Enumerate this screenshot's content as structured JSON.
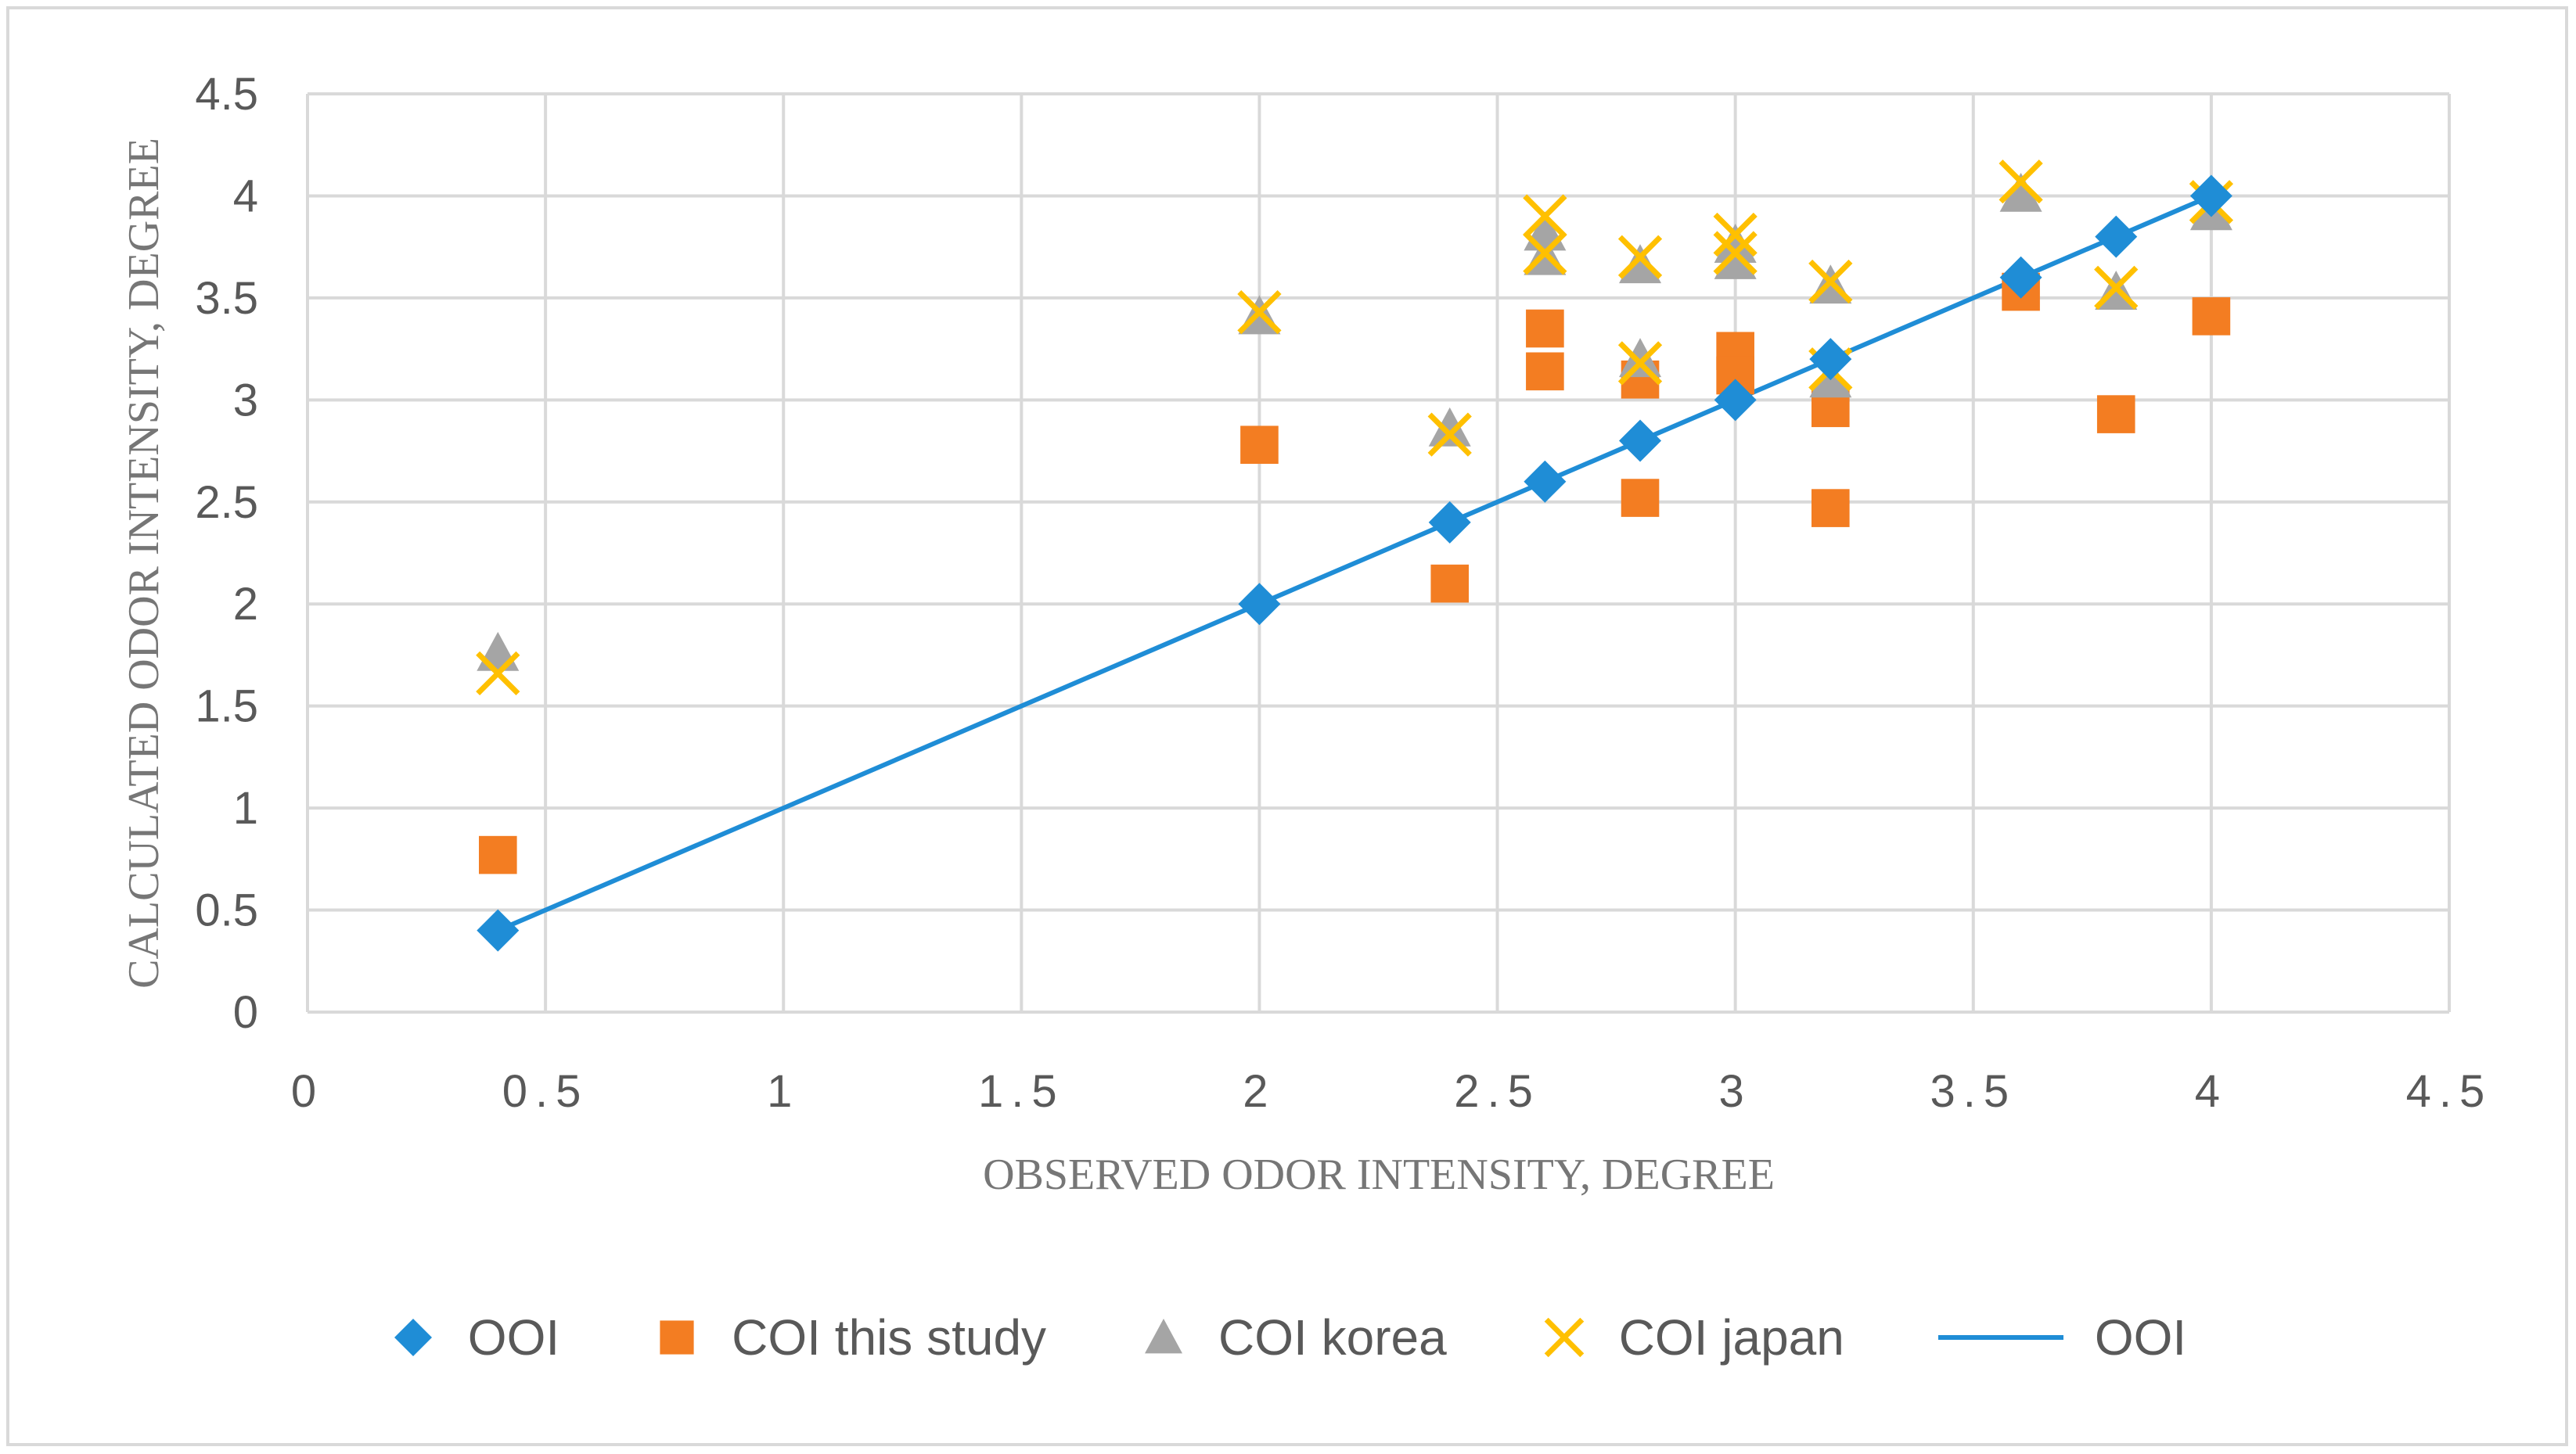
{
  "chart_data": {
    "type": "scatter",
    "title": "",
    "xlabel": "OBSERVED ODOR INTENSITY,  DEGREE",
    "ylabel": "CALCULATED ODOR  INTENSITY, DEGREE",
    "xlim": [
      0,
      4.5
    ],
    "ylim": [
      0,
      4.5
    ],
    "x_ticks": [
      "0",
      "0.5",
      "1",
      "1.5",
      "2",
      "2.5",
      "3",
      "3.5",
      "4",
      "4.5"
    ],
    "y_ticks": [
      "0",
      "0.5",
      "1",
      "1.5",
      "2",
      "2.5",
      "3",
      "3.5",
      "4",
      "4.5"
    ],
    "grid": true,
    "legend_position": "bottom",
    "series": [
      {
        "name": "OOI",
        "marker": "diamond",
        "color": "#1f8dd6",
        "points": [
          [
            0.4,
            0.4
          ],
          [
            2,
            2
          ],
          [
            2.4,
            2.4
          ],
          [
            2.6,
            2.6
          ],
          [
            2.8,
            2.8
          ],
          [
            3,
            3
          ],
          [
            3.2,
            3.2
          ],
          [
            3.6,
            3.6
          ],
          [
            3.8,
            3.8
          ],
          [
            4,
            4
          ]
        ]
      },
      {
        "name": "COI this study",
        "marker": "square",
        "color": "#f37d22",
        "points": [
          [
            0.4,
            0.77
          ],
          [
            2,
            2.78
          ],
          [
            2.4,
            2.1
          ],
          [
            2.6,
            3.35
          ],
          [
            2.6,
            3.14
          ],
          [
            2.8,
            3.1
          ],
          [
            2.8,
            2.52
          ],
          [
            3,
            3.24
          ],
          [
            3,
            3.12
          ],
          [
            3.2,
            2.96
          ],
          [
            3.2,
            2.47
          ],
          [
            3.6,
            3.53
          ],
          [
            3.8,
            2.93
          ],
          [
            4,
            3.41
          ]
        ]
      },
      {
        "name": "COI korea",
        "marker": "triangle",
        "color": "#a5a5a5",
        "points": [
          [
            0.4,
            1.76
          ],
          [
            2,
            3.41
          ],
          [
            2.4,
            2.86
          ],
          [
            2.6,
            3.82
          ],
          [
            2.6,
            3.7
          ],
          [
            2.8,
            3.66
          ],
          [
            2.8,
            3.2
          ],
          [
            3,
            3.76
          ],
          [
            3,
            3.68
          ],
          [
            3.2,
            3.56
          ],
          [
            3.2,
            3.1
          ],
          [
            3.6,
            4.01
          ],
          [
            3.8,
            3.53
          ],
          [
            4,
            3.92
          ]
        ]
      },
      {
        "name": "COI japan",
        "marker": "x",
        "color": "#ffc000",
        "points": [
          [
            0.4,
            1.66
          ],
          [
            2,
            3.43
          ],
          [
            2.4,
            2.83
          ],
          [
            2.6,
            3.9
          ],
          [
            2.6,
            3.72
          ],
          [
            2.8,
            3.7
          ],
          [
            2.8,
            3.18
          ],
          [
            3,
            3.81
          ],
          [
            3,
            3.72
          ],
          [
            3.2,
            3.58
          ],
          [
            3.2,
            3.15
          ],
          [
            3.6,
            4.07
          ],
          [
            3.8,
            3.55
          ],
          [
            4,
            3.97
          ]
        ]
      },
      {
        "name": "OOI",
        "marker": "line",
        "color": "#1f8dd6",
        "points": [
          [
            0.4,
            0.4
          ],
          [
            4,
            4
          ]
        ]
      }
    ]
  }
}
